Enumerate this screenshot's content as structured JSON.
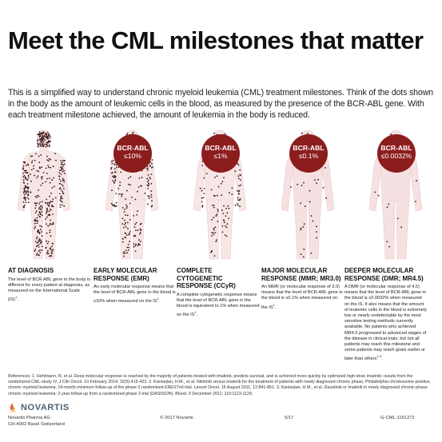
{
  "title": "Meet the CML milestones that matter",
  "intro": "This is a simplified way to understand chronic myeloid leukemia (CML) treatment milestones. Think of the dots shown in the body as the amount of leukemic cells in the blood, as measured by the presence of the BCR-ABL gene. With each treatment milestone achieved, the amount of leukemia in the body is reduced.",
  "colors": {
    "badge": "#8c1d1d",
    "dots": "#3a1515"
  },
  "milestones": [
    {
      "heading": "AT DIAGNOSIS",
      "body": "The level of BCR-ABL gene in the body is different for every patient at diagnosis, as measured on the International Scale (IS)",
      "ref": "1",
      "body_after": ".",
      "badge_label": "",
      "badge_value": "",
      "dot_density": 1.0,
      "figure_fill": "#f7e6e6"
    },
    {
      "heading": "EARLY MOLECULAR RESPONSE (EMR)",
      "body": "An early molecular response means that the level of BCR-ABL gene in the blood is ≤10% when measured on the IS",
      "ref": "1",
      "body_after": ".",
      "badge_label": "BCR-ABL",
      "badge_value": "≤10%",
      "dot_density": 0.55,
      "figure_fill": "#f7e6e6"
    },
    {
      "heading": "COMPLETE CYTOGENETIC RESPONSE (CCyR)",
      "body": "A complete cytogenetic response means that the level of BCR-ABL gene in the blood is equivalent to 1% when measured on the IS",
      "ref": "1",
      "body_after": ".",
      "badge_label": "BCR-ABL",
      "badge_value": "≤1%",
      "dot_density": 0.3,
      "figure_fill": "#f7e6e6"
    },
    {
      "heading": "MAJOR MOLECULAR RESPONSE (MMR; MR3.0)",
      "body": "An MMR (or molecular response of 3.0) means that the level of BCR-ABL gene in the blood is ≤0.1% when measured on the IS",
      "ref": "1",
      "body_after": ".",
      "badge_label": "BCR-ABL",
      "badge_value": "≤0.1%",
      "dot_density": 0.1,
      "figure_fill": "#f5e1e1"
    },
    {
      "heading": "DEEPER MOLECULAR RESPONSE (DMR; MR4.5)",
      "body": "A DMR (or molecular response of 4.5) means that the level of BCR-ABL gene in the blood is ≤0.0032% when measured on the IS. It also means that the amount of leukemic cells in the blood is extremely low or nearly undetectable by the most sensitive testing methods currently available. No patients who achieved MR4.5 progressed to advanced stages of the disease in clinical trials, but not all patients may reach this milestone and some patients may reach goals earlier or later than others",
      "ref": "1-3",
      "body_after": ".",
      "badge_label": "BCR-ABL",
      "badge_value": "≤0.0032%",
      "dot_density": 0.04,
      "figure_fill": "#f5e1e1"
    }
  ],
  "references": "References: 1. Hehlmann, R, et al. Deep molecular response is reached by the majority of patients treated with imatinib, predicts survival, and is achieved more quickly by optimized high-dose imatinib: results from the randomized CML-study IV. J Clin Oncol. 10 February 2014; 32(5):415-423. 2. Kantarjian, H.M., et al. Nilotinib versus imatinib for the treatment of patients with newly diagnosed chronic phase, Philadelphia chromosome-positive, chronic myeloid leukemia: 24-month minimum follow-up of the phase 3 randomised ENESTnd trial. Lancet Oncol. 16 August 2011; 12:841-851. 3. Kantarjian, H.M., et al. Dasatinib or imatinib in newly diagnosed chronic-phase chronic myeloid leukemia: 2-year follow-up from a randomized phase 3 trial (DASISION). Blood. 9 December 2011; 119:1123-1129.",
  "logo": {
    "text": "NOVARTIS",
    "icon": "novartis-flame-icon"
  },
  "footer": {
    "company": "Novartis Pharma AG",
    "address": "CH-4002 Basel Switzerland",
    "copyright": "© 2017 Novartis",
    "page": "5/17",
    "code": "G-CML-1161272"
  }
}
